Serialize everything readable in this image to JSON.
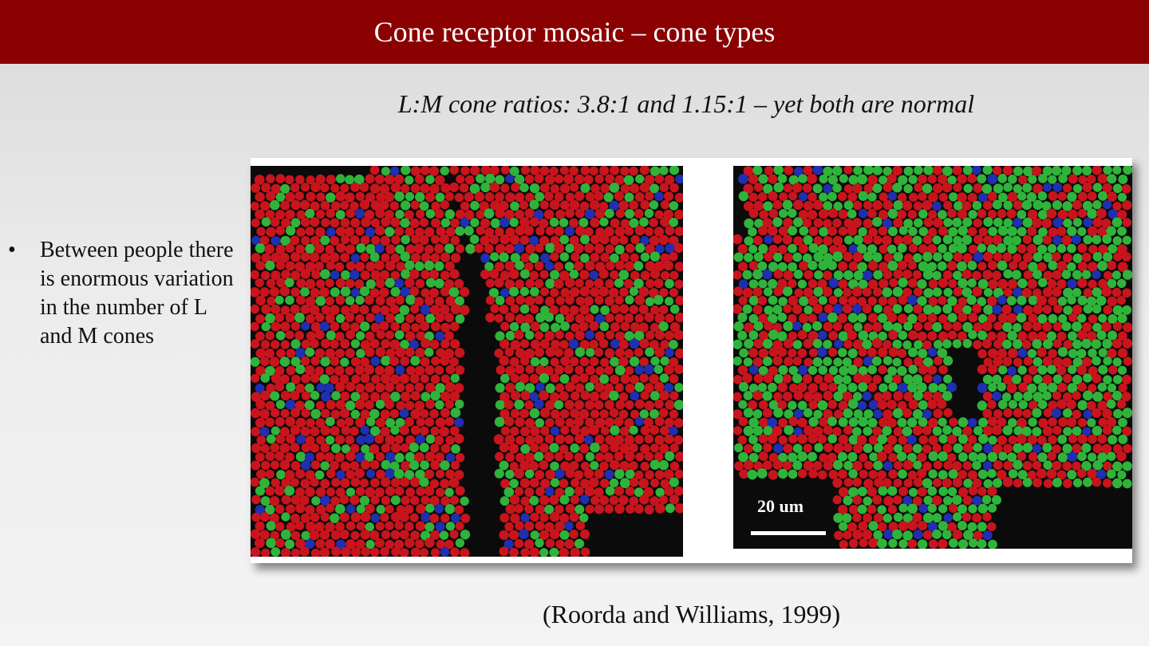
{
  "slide": {
    "title": "Cone receptor mosaic – cone types",
    "subtitle": "L:M cone ratios: 3.8:1 and 1.15:1 – yet both are normal",
    "bullets": [
      {
        "marker": "•",
        "text": "Between people there is enormous variation in the number of L and M cones"
      }
    ],
    "figure": {
      "scale_label": "20 um",
      "left_panel": {
        "lm_ratio": 3.8
      },
      "right_panel": {
        "lm_ratio": 1.15
      }
    },
    "citation": "(Roorda and Williams, 1999)"
  },
  "colors": {
    "title_bar": "#8b0000",
    "l_cone": "#c8141c",
    "m_cone": "#2fb33a",
    "s_cone": "#1f2fb0",
    "background": "#000000"
  }
}
